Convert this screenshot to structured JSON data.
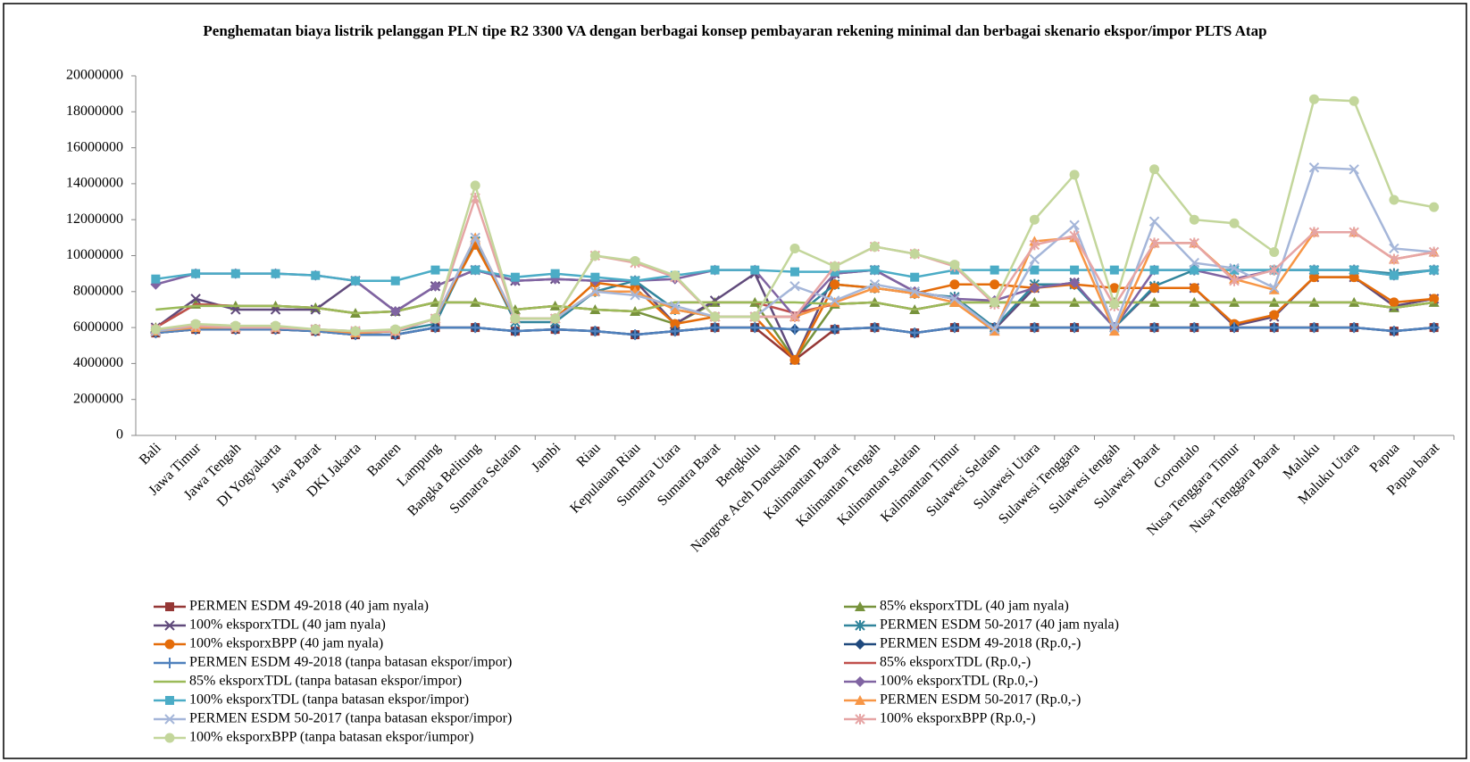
{
  "chart_data": {
    "type": "line",
    "title": "Penghematan biaya listrik pelanggan PLN tipe R2 3300 VA dengan berbagai konsep pembayaran  rekening minimal  dan berbagai skenario ekspor/impor  PLTS Atap",
    "categories": [
      "Bali",
      "Jawa Timur",
      "Jawa Tengah",
      "DI Yogyakarta",
      "Jawa Barat",
      "DKI Jakarta",
      "Banten",
      "Lampung",
      "Bangka Belitung",
      "Sumatra Selatan",
      "Jambi",
      "Riau",
      "Kepulauan Riau",
      "Sumatra Utara",
      "Sumatra Barat",
      "Bengkulu",
      "Nangroe Aceh Darusalam",
      "Kalimantan Barat",
      "Kalimantan Tengah",
      "Kalimantan selatan",
      "Kalimantan Timur",
      "Sulawesi Selatan",
      "Sulawesi Utara",
      "Sulawesi Tenggara",
      "Sulawesi tengah",
      "Sulawesi Barat",
      "Gorontalo",
      "Nusa Tenggara Timur",
      "Nusa Tenggara Barat",
      "Maluku",
      "Maluku Utara",
      "Papua",
      "Papua barat"
    ],
    "ylim": [
      0,
      20000000
    ],
    "yticks": [
      0,
      2000000,
      4000000,
      6000000,
      8000000,
      10000000,
      12000000,
      14000000,
      16000000,
      18000000,
      20000000
    ],
    "series": [
      {
        "name": "PERMEN ESDM 49-2018 (40 jam nyala)",
        "color": "#953735",
        "marker": "square",
        "values": [
          5700000,
          5900000,
          5900000,
          5900000,
          5800000,
          5600000,
          5600000,
          6000000,
          6000000,
          5800000,
          5900000,
          5800000,
          5600000,
          5800000,
          6000000,
          6000000,
          4200000,
          5900000,
          6000000,
          5700000,
          6000000,
          6000000,
          6000000,
          6000000,
          6000000,
          6000000,
          6000000,
          6000000,
          6000000,
          6000000,
          6000000,
          5800000,
          6000000
        ]
      },
      {
        "name": "85% eksporxTDL (40 jam nyala)",
        "color": "#77933c",
        "marker": "triangle",
        "values": [
          6000000,
          7300000,
          7200000,
          7200000,
          7100000,
          6800000,
          6900000,
          7400000,
          7400000,
          7000000,
          7200000,
          7000000,
          6900000,
          6200000,
          7400000,
          7400000,
          4200000,
          7300000,
          7400000,
          7000000,
          7400000,
          7400000,
          7400000,
          7400000,
          7400000,
          7400000,
          7400000,
          7400000,
          7400000,
          7400000,
          7400000,
          7100000,
          7400000
        ]
      },
      {
        "name": "100% eksporxTDL (40 jam nyala)",
        "color": "#604a7b",
        "marker": "x",
        "values": [
          6000000,
          7600000,
          7000000,
          7000000,
          7000000,
          8600000,
          6900000,
          8300000,
          9200000,
          8600000,
          8700000,
          8600000,
          8600000,
          6200000,
          7500000,
          9000000,
          4200000,
          9000000,
          9200000,
          8000000,
          7600000,
          5900000,
          8200000,
          8500000,
          6000000,
          8200000,
          8200000,
          6100000,
          6600000,
          8800000,
          8800000,
          7200000,
          7600000
        ]
      },
      {
        "name": "PERMEN ESDM 50-2017 (40 jam nyala)",
        "color": "#31859c",
        "marker": "asterisk",
        "values": [
          5800000,
          6000000,
          6000000,
          6000000,
          5900000,
          5700000,
          5800000,
          6200000,
          10800000,
          6300000,
          6300000,
          8000000,
          8600000,
          7000000,
          6600000,
          6600000,
          6600000,
          8400000,
          8200000,
          7900000,
          7700000,
          6000000,
          8400000,
          8400000,
          6000000,
          8300000,
          9200000,
          9200000,
          9200000,
          9200000,
          9200000,
          9000000,
          9200000
        ]
      },
      {
        "name": "100% eksporxBPP (40 jam nyala)",
        "color": "#e46c0a",
        "marker": "circle",
        "values": [
          5900000,
          6100000,
          6000000,
          6000000,
          5900000,
          5700000,
          5800000,
          6500000,
          10600000,
          6500000,
          6500000,
          8500000,
          8200000,
          6200000,
          6600000,
          6600000,
          4200000,
          8400000,
          8200000,
          7900000,
          8400000,
          8400000,
          8200000,
          8400000,
          8200000,
          8200000,
          8200000,
          6200000,
          6700000,
          8800000,
          8800000,
          7400000,
          7600000
        ]
      },
      {
        "name": "PERMEN ESDM 49-2018 (Rp.0,-)",
        "color": "#1f497d",
        "marker": "diamond",
        "values": [
          5700000,
          5900000,
          5900000,
          5900000,
          5800000,
          5600000,
          5600000,
          6000000,
          6000000,
          5800000,
          5900000,
          5800000,
          5600000,
          5800000,
          6000000,
          6000000,
          5900000,
          5900000,
          6000000,
          5700000,
          6000000,
          6000000,
          6000000,
          6000000,
          6000000,
          6000000,
          6000000,
          6000000,
          6000000,
          6000000,
          6000000,
          5800000,
          6000000
        ]
      },
      {
        "name": "PERMEN ESDM 49-2018 (tanpa batasan ekspor/impor)",
        "color": "#4f81bd",
        "marker": "plus",
        "values": [
          5700000,
          5900000,
          5900000,
          5900000,
          5800000,
          5600000,
          5600000,
          6000000,
          6000000,
          5800000,
          5900000,
          5800000,
          5600000,
          5800000,
          6000000,
          6000000,
          5900000,
          5900000,
          6000000,
          5700000,
          6000000,
          6000000,
          6000000,
          6000000,
          6000000,
          6000000,
          6000000,
          6000000,
          6000000,
          6000000,
          6000000,
          5800000,
          6000000
        ]
      },
      {
        "name": "85% eksporxTDL (Rp.0,-)",
        "color": "#c0504d",
        "marker": "none",
        "values": [
          6000000,
          7300000,
          7200000,
          7200000,
          7100000,
          6800000,
          6900000,
          7400000,
          7400000,
          7000000,
          7200000,
          7000000,
          6900000,
          7400000,
          7400000,
          7400000,
          6800000,
          7300000,
          7400000,
          7000000,
          7400000,
          7400000,
          7400000,
          7400000,
          7400000,
          7400000,
          7400000,
          7400000,
          7400000,
          7400000,
          7400000,
          7100000,
          7400000
        ]
      },
      {
        "name": "85% eksporxTDL  (tanpa batasan ekspor/impor)",
        "color": "#9bbb59",
        "marker": "none",
        "values": [
          7000000,
          7200000,
          7200000,
          7200000,
          7100000,
          6800000,
          6900000,
          7400000,
          7400000,
          7000000,
          7200000,
          7000000,
          6900000,
          7400000,
          7400000,
          7400000,
          7400000,
          7300000,
          7400000,
          7000000,
          7400000,
          7400000,
          7400000,
          7400000,
          7400000,
          7400000,
          7400000,
          7400000,
          7400000,
          7400000,
          7400000,
          7100000,
          7400000
        ]
      },
      {
        "name": "100% eksporxTDL  (Rp.0,-)",
        "color": "#8064a2",
        "marker": "diamond",
        "values": [
          8400000,
          9000000,
          9000000,
          9000000,
          8900000,
          8600000,
          6900000,
          8300000,
          9200000,
          8600000,
          8700000,
          8600000,
          8600000,
          8700000,
          9200000,
          9200000,
          6600000,
          9000000,
          9200000,
          8000000,
          7600000,
          7500000,
          8200000,
          8500000,
          6000000,
          9200000,
          9200000,
          8700000,
          9200000,
          9200000,
          9200000,
          8900000,
          9200000
        ]
      },
      {
        "name": "100% eksporxTDL  (tanpa batasan ekspor/impor)",
        "color": "#4bacc6",
        "marker": "square",
        "values": [
          8700000,
          9000000,
          9000000,
          9000000,
          8900000,
          8600000,
          8600000,
          9200000,
          9200000,
          8800000,
          9000000,
          8800000,
          8600000,
          8900000,
          9200000,
          9200000,
          9100000,
          9100000,
          9200000,
          8800000,
          9200000,
          9200000,
          9200000,
          9200000,
          9200000,
          9200000,
          9200000,
          9200000,
          9200000,
          9200000,
          9200000,
          8900000,
          9200000
        ]
      },
      {
        "name": "PERMEN ESDM 50-2017 (Rp.0,-)",
        "color": "#f79646",
        "marker": "triangle",
        "values": [
          5800000,
          6000000,
          6000000,
          6000000,
          5900000,
          5700000,
          5800000,
          6500000,
          11000000,
          6500000,
          6500000,
          8000000,
          8000000,
          7000000,
          6600000,
          6600000,
          6600000,
          7400000,
          8200000,
          7900000,
          7400000,
          5800000,
          10800000,
          11000000,
          5800000,
          10700000,
          10700000,
          8700000,
          8100000,
          11300000,
          11300000,
          9800000,
          10200000
        ]
      },
      {
        "name": "PERMEN ESDM 50-2017 (tanpa batasan ekspor/impor)",
        "color": "#a5b6d9",
        "marker": "x",
        "values": [
          5800000,
          6100000,
          6000000,
          6000000,
          5900000,
          5800000,
          5800000,
          6500000,
          11000000,
          6500000,
          6500000,
          8000000,
          7800000,
          7200000,
          6600000,
          6600000,
          8300000,
          7500000,
          8400000,
          8000000,
          7600000,
          5900000,
          9800000,
          11700000,
          6000000,
          11900000,
          9600000,
          9300000,
          8200000,
          14900000,
          14800000,
          10400000,
          10200000
        ]
      },
      {
        "name": "100% eksporxBPP (Rp.0,-)",
        "color": "#e6a5a5",
        "marker": "asterisk",
        "values": [
          5900000,
          6100000,
          6000000,
          6000000,
          5900000,
          5800000,
          5800000,
          6500000,
          13200000,
          6500000,
          6500000,
          10000000,
          9600000,
          8800000,
          6600000,
          6600000,
          6600000,
          9400000,
          10500000,
          10100000,
          9400000,
          7300000,
          10600000,
          11100000,
          7200000,
          10700000,
          10700000,
          8600000,
          9200000,
          11300000,
          11300000,
          9800000,
          10200000
        ]
      },
      {
        "name": "100% eksporxBPP (tanpa batasan ekspor/iumpor)",
        "color": "#c3d69b",
        "marker": "circle",
        "values": [
          5900000,
          6200000,
          6100000,
          6100000,
          5900000,
          5800000,
          5900000,
          6500000,
          13900000,
          6500000,
          6500000,
          10000000,
          9700000,
          8900000,
          6600000,
          6600000,
          10400000,
          9400000,
          10500000,
          10100000,
          9500000,
          7400000,
          12000000,
          14500000,
          7300000,
          14800000,
          12000000,
          11800000,
          10200000,
          18700000,
          18600000,
          13100000,
          12700000
        ]
      }
    ]
  }
}
